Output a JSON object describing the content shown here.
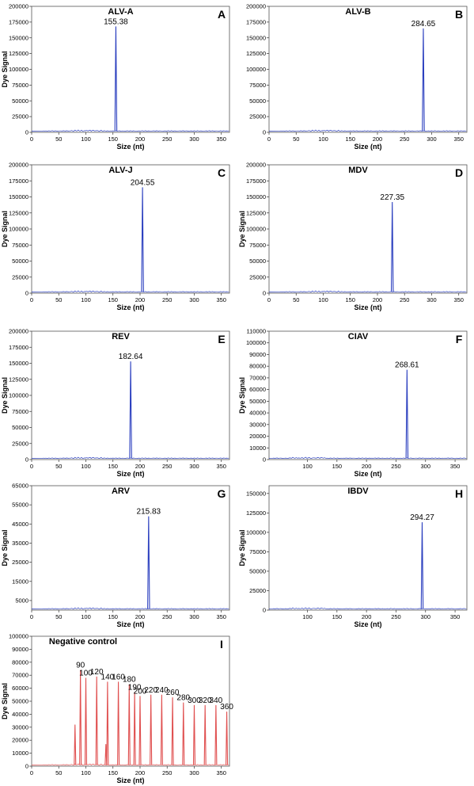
{
  "chart_data": [
    {
      "type": "line",
      "letter": "A",
      "title": "ALV-A",
      "ylabel": "Dye Signal",
      "xlabel": "Size (nt)",
      "yticks": [
        0,
        25000,
        50000,
        75000,
        100000,
        125000,
        150000,
        175000,
        200000
      ],
      "ylim": [
        0,
        200000
      ],
      "xticks": [
        0,
        50,
        100,
        150,
        200,
        250,
        300,
        350
      ],
      "xlim": [
        0,
        365
      ],
      "peaks": [
        {
          "x": 155.38,
          "y": 168000,
          "label": "155.38"
        }
      ],
      "color": "#2b3fbf"
    },
    {
      "type": "line",
      "letter": "B",
      "title": "ALV-B",
      "ylabel": "",
      "xlabel": "Size (nt)",
      "yticks": [
        0,
        25000,
        50000,
        75000,
        100000,
        125000,
        150000,
        175000,
        200000
      ],
      "ylim": [
        0,
        200000
      ],
      "xticks": [
        0,
        50,
        100,
        150,
        200,
        250,
        300,
        350
      ],
      "xlim": [
        0,
        365
      ],
      "peaks": [
        {
          "x": 284.65,
          "y": 165000,
          "label": "284.65"
        }
      ],
      "color": "#2b3fbf"
    },
    {
      "type": "line",
      "letter": "C",
      "title": "ALV-J",
      "ylabel": "Dye Signal",
      "xlabel": "Size (nt)",
      "yticks": [
        0,
        25000,
        50000,
        75000,
        100000,
        125000,
        150000,
        175000,
        200000
      ],
      "ylim": [
        0,
        200000
      ],
      "xticks": [
        0,
        50,
        100,
        150,
        200,
        250,
        300,
        350
      ],
      "xlim": [
        0,
        365
      ],
      "peaks": [
        {
          "x": 204.55,
          "y": 165000,
          "label": "204.55"
        }
      ],
      "color": "#2b3fbf"
    },
    {
      "type": "line",
      "letter": "D",
      "title": "MDV",
      "ylabel": "Dye Signal",
      "xlabel": "Size (nt)",
      "yticks": [
        0,
        25000,
        50000,
        75000,
        100000,
        125000,
        150000,
        175000,
        200000
      ],
      "ylim": [
        0,
        200000
      ],
      "xticks": [
        0,
        50,
        100,
        150,
        200,
        250,
        300,
        350
      ],
      "xlim": [
        0,
        365
      ],
      "peaks": [
        {
          "x": 227.35,
          "y": 142000,
          "label": "227.35"
        }
      ],
      "color": "#2b3fbf"
    },
    {
      "type": "line",
      "letter": "E",
      "title": "REV",
      "ylabel": "Dye Signal",
      "xlabel": "Size (nt)",
      "yticks": [
        0,
        25000,
        50000,
        75000,
        100000,
        125000,
        150000,
        175000,
        200000
      ],
      "ylim": [
        0,
        200000
      ],
      "xticks": [
        0,
        50,
        100,
        150,
        200,
        250,
        300,
        350
      ],
      "xlim": [
        0,
        365
      ],
      "peaks": [
        {
          "x": 182.64,
          "y": 153000,
          "label": "182.64"
        }
      ],
      "color": "#2b3fbf"
    },
    {
      "type": "line",
      "letter": "F",
      "title": "CIAV",
      "ylabel": "Dye Signal",
      "xlabel": "Size (nt)",
      "yticks": [
        0,
        10000,
        20000,
        30000,
        40000,
        50000,
        60000,
        70000,
        80000,
        90000,
        100000,
        110000
      ],
      "ylim": [
        0,
        110000
      ],
      "xticks": [
        100,
        150,
        200,
        250,
        300,
        350
      ],
      "xlim": [
        35,
        370
      ],
      "peaks": [
        {
          "x": 268.61,
          "y": 77000,
          "label": "268.61"
        }
      ],
      "color": "#2b3fbf"
    },
    {
      "type": "line",
      "letter": "G",
      "title": "ARV",
      "ylabel": "Dye Signal",
      "xlabel": "Size (nt)",
      "yticks": [
        5000,
        15000,
        25000,
        35000,
        45000,
        55000,
        65000
      ],
      "ylim": [
        0,
        65000
      ],
      "xticks": [
        0,
        50,
        100,
        150,
        200,
        250,
        300,
        350
      ],
      "xlim": [
        0,
        365
      ],
      "peaks": [
        {
          "x": 215.83,
          "y": 49000,
          "label": "215.83"
        }
      ],
      "color": "#2b3fbf"
    },
    {
      "type": "line",
      "letter": "H",
      "title": "IBDV",
      "ylabel": "Dye Signal",
      "xlabel": "Size (nt)",
      "yticks": [
        0,
        25000,
        50000,
        75000,
        100000,
        125000,
        150000
      ],
      "ylim": [
        0,
        160000
      ],
      "xticks": [
        100,
        150,
        200,
        250,
        300,
        350
      ],
      "xlim": [
        35,
        370
      ],
      "peaks": [
        {
          "x": 294.27,
          "y": 113000,
          "label": "294.27"
        }
      ],
      "color": "#2b3fbf"
    },
    {
      "type": "line",
      "letter": "I",
      "title": "Negative control",
      "ylabel": "Dye Signal",
      "xlabel": "Size (nt)",
      "yticks": [
        0,
        10000,
        20000,
        30000,
        40000,
        50000,
        60000,
        70000,
        80000,
        90000,
        100000
      ],
      "ylim": [
        0,
        100000
      ],
      "xticks": [
        0,
        50,
        100,
        150,
        200,
        250,
        300,
        350
      ],
      "xlim": [
        0,
        365
      ],
      "color": "#e05050",
      "ladder": [
        {
          "x": 90,
          "y": 74000,
          "label": "90"
        },
        {
          "x": 100,
          "y": 68000,
          "label": "100"
        },
        {
          "x": 120,
          "y": 69000,
          "label": "120"
        },
        {
          "x": 140,
          "y": 65000,
          "label": "140"
        },
        {
          "x": 160,
          "y": 65000,
          "label": "160"
        },
        {
          "x": 180,
          "y": 63000,
          "label": "180"
        },
        {
          "x": 190,
          "y": 57000,
          "label": "190"
        },
        {
          "x": 200,
          "y": 54000,
          "label": "200"
        },
        {
          "x": 220,
          "y": 55000,
          "label": "220"
        },
        {
          "x": 240,
          "y": 55000,
          "label": "240"
        },
        {
          "x": 260,
          "y": 53000,
          "label": "260"
        },
        {
          "x": 280,
          "y": 49000,
          "label": "280"
        },
        {
          "x": 300,
          "y": 47000,
          "label": "300"
        },
        {
          "x": 320,
          "y": 47000,
          "label": "320"
        },
        {
          "x": 340,
          "y": 47000,
          "label": "340"
        },
        {
          "x": 360,
          "y": 42000,
          "label": "360"
        }
      ],
      "extra_peaks": [
        {
          "x": 80,
          "y": 32000
        },
        {
          "x": 137,
          "y": 17000
        }
      ]
    }
  ]
}
